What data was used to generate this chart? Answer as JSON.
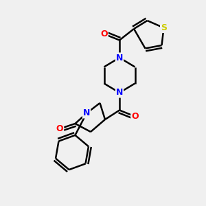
{
  "background_color": "#f0f0f0",
  "bond_color": "#000000",
  "bond_width": 1.8,
  "atom_colors": {
    "N": "#0000ff",
    "O": "#ff0000",
    "S": "#cccc00",
    "C": "#000000"
  },
  "font_size": 9,
  "figsize": [
    3.0,
    3.0
  ],
  "dpi": 100
}
